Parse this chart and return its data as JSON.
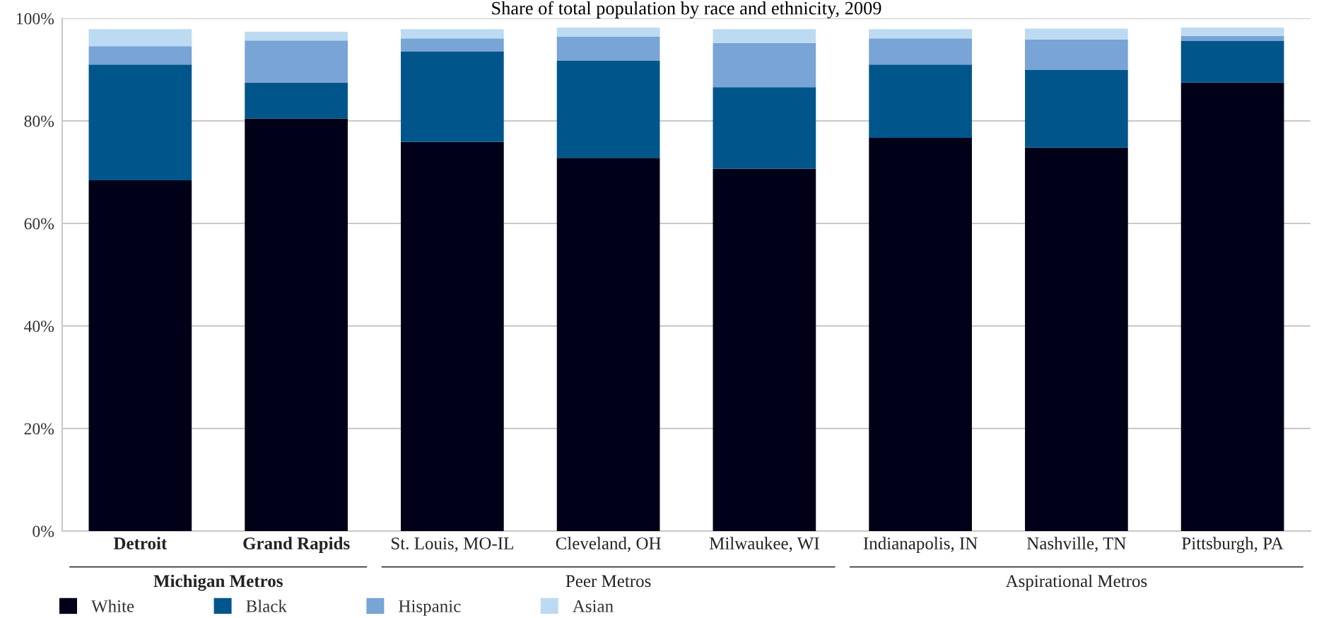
{
  "chart_data": {
    "type": "bar",
    "stacked": true,
    "title": "Share of total population by race and ethnicity, 2009",
    "categories": [
      "Detroit",
      "Grand Rapids",
      "St. Louis, MO-IL",
      "Cleveland, OH",
      "Milwaukee, WI",
      "Indianapolis, IN",
      "Nashville, TN",
      "Pittsburgh, PA"
    ],
    "series": [
      {
        "name": "White",
        "color": "#000018",
        "values": [
          68.4,
          80.5,
          75.9,
          72.8,
          70.7,
          76.7,
          74.8,
          87.5
        ]
      },
      {
        "name": "Black",
        "color": "#00568a",
        "values": [
          22.6,
          7.0,
          17.7,
          19.0,
          15.9,
          14.3,
          15.2,
          8.1
        ]
      },
      {
        "name": "Hispanic",
        "color": "#78a4d6",
        "values": [
          3.6,
          8.2,
          2.5,
          4.6,
          8.6,
          5.1,
          5.9,
          1.0
        ]
      },
      {
        "name": "Asian",
        "color": "#bcdaf2",
        "values": [
          3.3,
          1.7,
          1.8,
          1.8,
          2.7,
          1.8,
          2.1,
          1.6
        ]
      }
    ],
    "ylim": [
      0,
      100
    ],
    "yticks": [
      {
        "value": 0,
        "label": "0%"
      },
      {
        "value": 20,
        "label": "20%"
      },
      {
        "value": 40,
        "label": "40%"
      },
      {
        "value": 60,
        "label": "60%"
      },
      {
        "value": 80,
        "label": "80%"
      },
      {
        "value": 100,
        "label": "100%"
      }
    ],
    "annotations": [
      "Michigan Metros",
      "Peer Metros",
      "Aspirational Metros"
    ],
    "grid": "y",
    "legend": "bottom left"
  }
}
